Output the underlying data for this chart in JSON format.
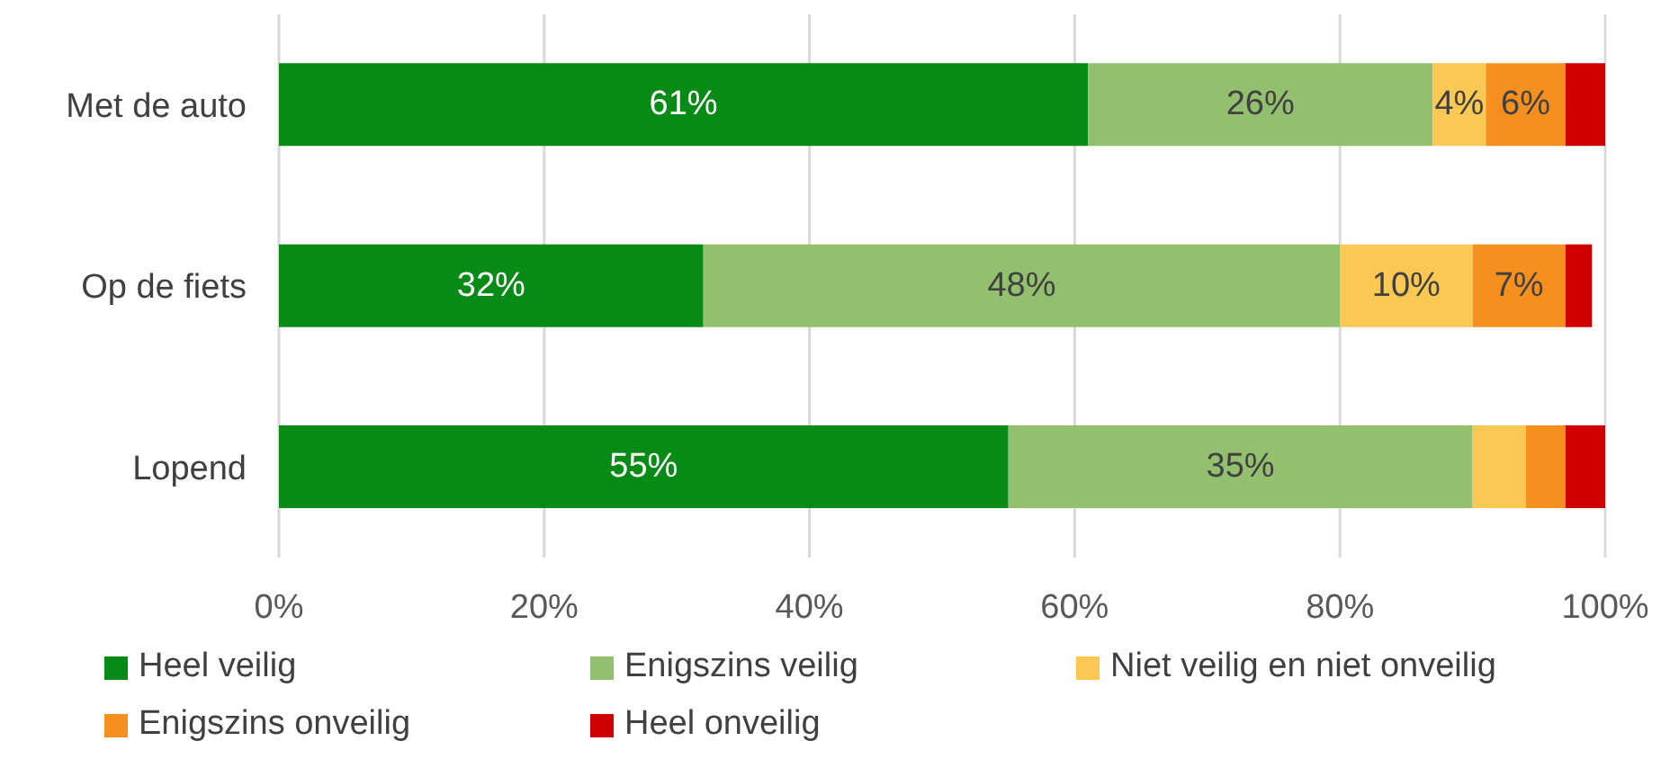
{
  "chart_data": {
    "type": "bar",
    "orientation": "horizontal",
    "stacked": true,
    "categories": [
      "Met de auto",
      "Op de fiets",
      "Lopend"
    ],
    "series": [
      {
        "name": "Heel veilig",
        "color": "#078a16",
        "values": [
          61,
          32,
          55
        ],
        "value_labels": [
          "61%",
          "32%",
          "55%"
        ]
      },
      {
        "name": "Enigszins veilig",
        "color": "#92c06e",
        "values": [
          26,
          48,
          35
        ],
        "value_labels": [
          "26%",
          "48%",
          "35%"
        ]
      },
      {
        "name": "Niet veilig en niet onveilig",
        "color": "#fbc853",
        "values": [
          4,
          10,
          4
        ],
        "value_labels": [
          "4%",
          "10%",
          null
        ]
      },
      {
        "name": "Enigszins onveilig",
        "color": "#f5901e",
        "values": [
          6,
          7,
          3
        ],
        "value_labels": [
          "6%",
          "7%",
          null
        ]
      },
      {
        "name": "Heel onveilig",
        "color": "#d00000",
        "values": [
          3,
          2,
          3
        ],
        "value_labels": [
          null,
          null,
          null
        ]
      }
    ],
    "xlim": [
      0,
      100
    ],
    "xticks": [
      {
        "value": 0,
        "label": "0%"
      },
      {
        "value": 20,
        "label": "20%"
      },
      {
        "value": 40,
        "label": "40%"
      },
      {
        "value": 60,
        "label": "60%"
      },
      {
        "value": 80,
        "label": "80%"
      },
      {
        "value": 100,
        "label": "100%"
      }
    ],
    "grid": "x",
    "legend": "bottom"
  }
}
